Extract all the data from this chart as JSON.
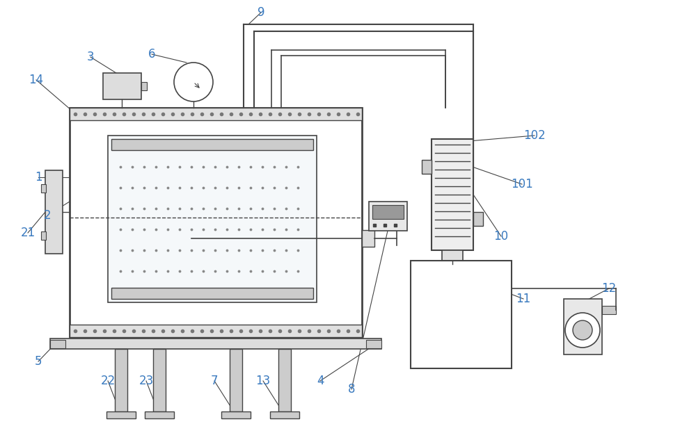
{
  "bg_color": "#ffffff",
  "line_color": "#444444",
  "label_color": "#3a7abf",
  "fig_width": 10.0,
  "fig_height": 6.1
}
